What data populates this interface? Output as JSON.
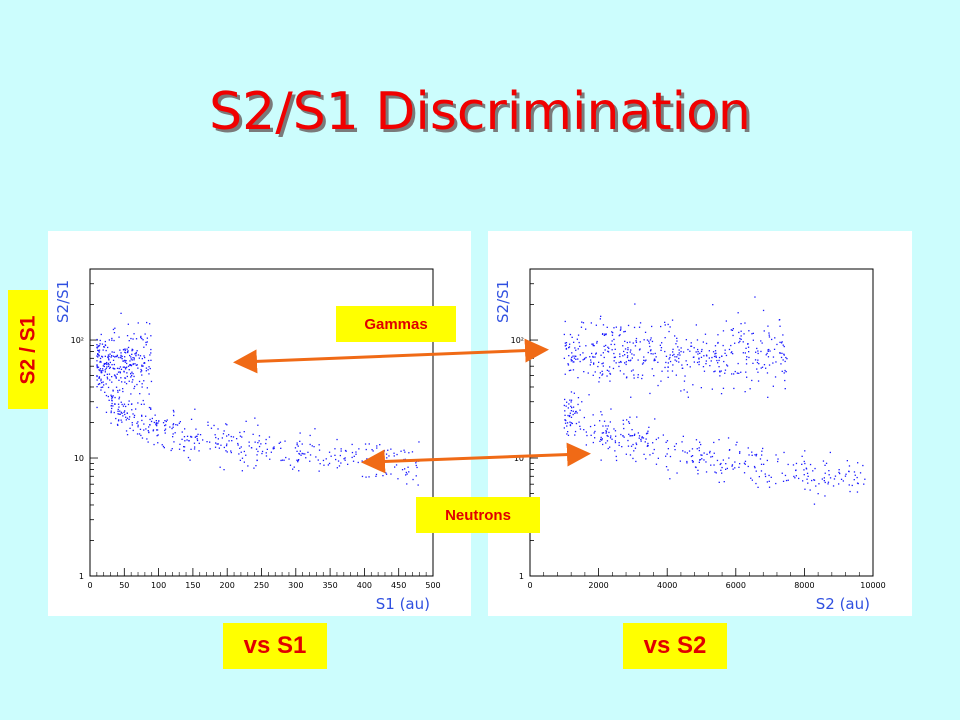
{
  "title": "S2/S1 Discrimination",
  "labels": {
    "y_label": "S2 / S1",
    "vs_s1": "vs S1",
    "vs_s2": "vs S2",
    "gammas": "Gammas",
    "neutrons": "Neutrons"
  },
  "colors": {
    "background": "#ccfdfd",
    "title": "#f00000",
    "highlight_box": "#ffff00",
    "arrow": "#f06a16",
    "points": "#1a1aff"
  },
  "chart_data": [
    {
      "type": "scatter",
      "xlabel": "S1 (au)",
      "ylabel": "S2/S1",
      "xlim": [
        0,
        500
      ],
      "ylim": [
        1,
        400
      ],
      "yscale": "log",
      "x_ticks": [
        "0",
        "50",
        "100",
        "150",
        "200",
        "250",
        "300",
        "350",
        "400",
        "450",
        "500"
      ],
      "y_ticks": [
        "1",
        "10",
        "10²"
      ],
      "clusters": [
        {
          "name": "Gammas",
          "x_range": [
            10,
            90
          ],
          "y_center": 65,
          "n": 300
        },
        {
          "name": "Neutrons",
          "x_range": [
            30,
            480
          ],
          "y_trend": [
            [
              30,
              28
            ],
            [
              80,
              20
            ],
            [
              150,
              15
            ],
            [
              300,
              11
            ],
            [
              480,
              9
            ]
          ],
          "n": 420
        }
      ]
    },
    {
      "type": "scatter",
      "xlabel": "S2 (au)",
      "ylabel": "S2/S1",
      "xlim": [
        0,
        10000
      ],
      "ylim": [
        1,
        400
      ],
      "yscale": "log",
      "x_ticks": [
        "0",
        "2000",
        "4000",
        "6000",
        "8000",
        "10000"
      ],
      "y_ticks": [
        "1",
        "10",
        "10²"
      ],
      "clusters": [
        {
          "name": "Gammas",
          "x_range": [
            1000,
            7500
          ],
          "y_center": 75,
          "n": 500
        },
        {
          "name": "Neutrons",
          "x_range": [
            1000,
            9800
          ],
          "y_trend": [
            [
              1000,
              25
            ],
            [
              2000,
              16
            ],
            [
              4000,
              12
            ],
            [
              6000,
              9
            ],
            [
              9000,
              7
            ]
          ],
          "n": 380
        }
      ]
    }
  ]
}
